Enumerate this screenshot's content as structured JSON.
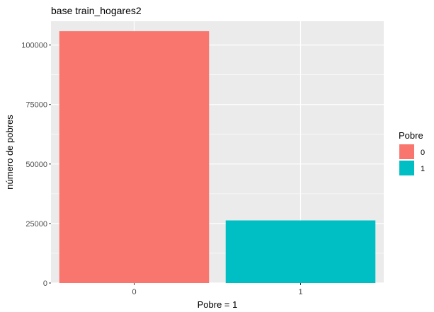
{
  "chart_data": {
    "type": "bar",
    "title": "base train_hogares2",
    "xlabel": "Pobre = 1",
    "ylabel": "número de pobres",
    "categories": [
      "0",
      "1"
    ],
    "values": [
      105800,
      26300
    ],
    "colors": [
      "#F8766D",
      "#00BFC4"
    ],
    "ylim": [
      0,
      110000
    ],
    "yticks": [
      0,
      25000,
      50000,
      75000,
      100000
    ],
    "ytick_labels": [
      "0",
      "25000",
      "50000",
      "75000",
      "100000"
    ],
    "grid": true,
    "legend": {
      "title": "Pobre",
      "placement": "right",
      "entries": [
        {
          "label": "0",
          "color": "#F8766D"
        },
        {
          "label": "1",
          "color": "#00BFC4"
        }
      ]
    },
    "panel_background": "#EBEBEB",
    "grid_color": "#FFFFFF"
  }
}
